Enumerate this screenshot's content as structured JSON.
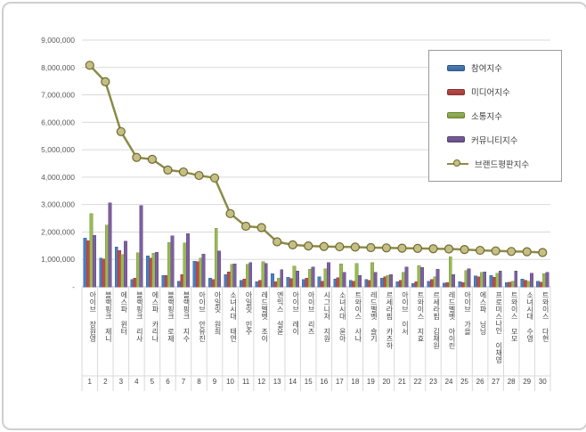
{
  "chart_data": {
    "type": "bar+line",
    "title": "",
    "categories": [
      "아이브 장원영",
      "블랙핑크 제니",
      "에스파 윈터",
      "블랙핑크 리사",
      "에스파 카리나",
      "블랙핑크 로제",
      "블랙핑크 지수",
      "아이브 안유진",
      "아일릿 원희",
      "소녀시대 태연",
      "아일릿 민주",
      "레드벨벳 조이",
      "엔믹스 설윤",
      "아이브 레이",
      "아이브 리즈",
      "시그니처 지원",
      "소녀시대 윤아",
      "트와이스 사나",
      "레드벨벳 슬기",
      "르세라핌 카즈하",
      "아이브 이서",
      "트와이스 지효",
      "르세라핌 김채원",
      "레드벨벳 아이린",
      "아이브 가을",
      "에스파 닝닝",
      "프로미스나인 이채영",
      "트와이스 모모",
      "소녀시대 수영",
      "트와이스 다현"
    ],
    "ranks": [
      "1",
      "2",
      "3",
      "4",
      "5",
      "6",
      "7",
      "8",
      "9",
      "10",
      "11",
      "12",
      "13",
      "14",
      "15",
      "16",
      "17",
      "18",
      "19",
      "20",
      "21",
      "22",
      "23",
      "24",
      "25",
      "26",
      "27",
      "28",
      "29",
      "30"
    ],
    "series": [
      {
        "name": "참여지수",
        "type": "bar",
        "color": "#4a7ebb",
        "color_dark": "#3a66a0",
        "values": [
          1780000,
          1050000,
          1460000,
          260000,
          1130000,
          420000,
          200000,
          940000,
          320000,
          450000,
          240000,
          190000,
          480000,
          350000,
          260000,
          370000,
          290000,
          230000,
          260000,
          320000,
          180000,
          120000,
          200000,
          130000,
          180000,
          390000,
          420000,
          150000,
          280000,
          200000
        ]
      },
      {
        "name": "미디어지수",
        "type": "bar",
        "color": "#be4b48",
        "color_dark": "#9e3b38",
        "values": [
          1680000,
          1020000,
          1330000,
          320000,
          1050000,
          420000,
          450000,
          910000,
          260000,
          540000,
          280000,
          230000,
          190000,
          300000,
          310000,
          200000,
          340000,
          200000,
          230000,
          370000,
          230000,
          180000,
          260000,
          150000,
          150000,
          360000,
          350000,
          170000,
          240000,
          170000
        ]
      },
      {
        "name": "소통지수",
        "type": "bar",
        "color": "#98b954",
        "color_dark": "#7e9c42",
        "values": [
          2670000,
          2250000,
          1170000,
          1250000,
          1220000,
          1620000,
          1600000,
          1050000,
          2140000,
          820000,
          820000,
          920000,
          320000,
          750000,
          640000,
          660000,
          840000,
          860000,
          880000,
          420000,
          530000,
          770000,
          370000,
          1100000,
          590000,
          530000,
          500000,
          200000,
          200000,
          480000
        ]
      },
      {
        "name": "커뮤니티지수",
        "type": "bar",
        "color": "#7d60a0",
        "color_dark": "#664d86",
        "values": [
          1870000,
          3060000,
          1660000,
          2960000,
          1260000,
          1860000,
          1940000,
          1200000,
          1310000,
          840000,
          880000,
          850000,
          620000,
          580000,
          730000,
          880000,
          530000,
          420000,
          530000,
          440000,
          730000,
          700000,
          640000,
          450000,
          660000,
          550000,
          580000,
          570000,
          500000,
          530000
        ]
      },
      {
        "name": "브랜드평판지수",
        "type": "line",
        "color": "#8c8b47",
        "marker_fill": "#c5bf86",
        "marker_stroke": "#6e6a2f",
        "values": [
          8080000,
          7480000,
          5660000,
          4720000,
          4650000,
          4260000,
          4190000,
          4060000,
          3970000,
          2670000,
          2210000,
          2160000,
          1640000,
          1530000,
          1490000,
          1470000,
          1460000,
          1450000,
          1430000,
          1420000,
          1410000,
          1400000,
          1390000,
          1380000,
          1360000,
          1330000,
          1310000,
          1290000,
          1280000,
          1250000
        ]
      }
    ],
    "y_axis": {
      "min": 0,
      "max": 9000000,
      "step": 1000000,
      "tick_labels": [
        "-",
        "1,000,000",
        "2,000,000",
        "3,000,000",
        "4,000,000",
        "5,000,000",
        "6,000,000",
        "7,000,000",
        "8,000,000",
        "9,000,000"
      ]
    },
    "legend": {
      "position": "top-right"
    },
    "grid": true,
    "grid_color": "#d9d9d9",
    "axis_color": "#bfbfbf",
    "tick_text_color": "#595959"
  }
}
